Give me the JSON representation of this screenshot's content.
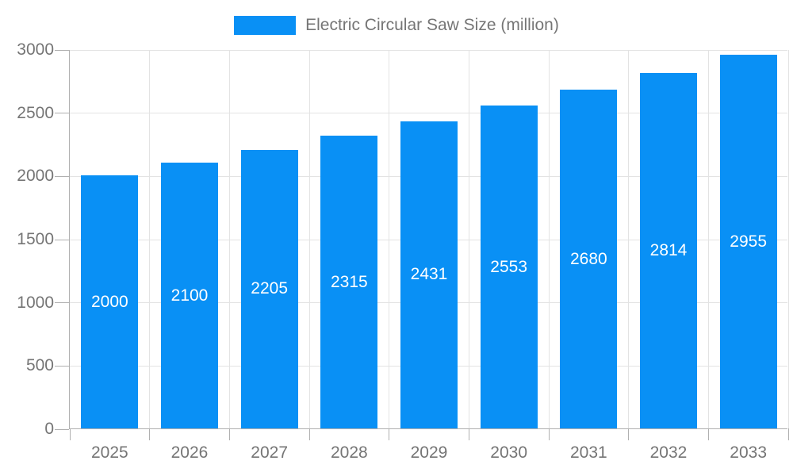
{
  "chart_data": {
    "type": "bar",
    "title": "Electric Circular Saw Size (million)",
    "categories": [
      "2025",
      "2026",
      "2027",
      "2028",
      "2029",
      "2030",
      "2031",
      "2032",
      "2033"
    ],
    "values": [
      2000,
      2100,
      2205,
      2315,
      2431,
      2553,
      2680,
      2814,
      2955
    ],
    "value_labels": [
      "2000",
      "2100",
      "2205",
      "2315",
      "2431",
      "2553",
      "2680",
      "2814",
      "2955"
    ],
    "xlabel": "",
    "ylabel": "",
    "ylim": [
      0,
      3000
    ],
    "yticks": [
      0,
      500,
      1000,
      1500,
      2000,
      2500,
      3000
    ],
    "grid": true,
    "legend_position": "top",
    "colors": {
      "bar": "#0990f5",
      "value_label": "#ffffff",
      "axis": "#b0b0b0",
      "grid": "#e3e3e3",
      "text": "#757575"
    }
  }
}
